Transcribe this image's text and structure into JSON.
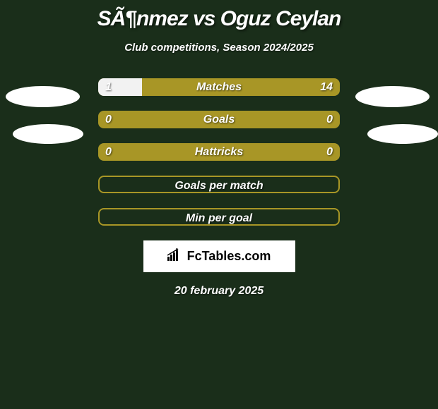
{
  "title": "SÃ¶nmez vs Oguz Ceylan",
  "subtitle": "Club competitions, Season 2024/2025",
  "background_color": "#1a2e1a",
  "bar_color": "#a89626",
  "fill_color": "#f2f2f2",
  "text_color": "#ffffff",
  "avatar_color": "#ffffff",
  "stats": [
    {
      "label": "Matches",
      "left_value": "1",
      "right_value": "14",
      "left_fill_pct": 18,
      "right_fill_pct": 0,
      "empty": false,
      "show_values": true
    },
    {
      "label": "Goals",
      "left_value": "0",
      "right_value": "0",
      "left_fill_pct": 0,
      "right_fill_pct": 0,
      "empty": false,
      "show_values": true
    },
    {
      "label": "Hattricks",
      "left_value": "0",
      "right_value": "0",
      "left_fill_pct": 0,
      "right_fill_pct": 0,
      "empty": false,
      "show_values": true
    },
    {
      "label": "Goals per match",
      "left_value": "",
      "right_value": "",
      "left_fill_pct": 0,
      "right_fill_pct": 0,
      "empty": true,
      "show_values": false
    },
    {
      "label": "Min per goal",
      "left_value": "",
      "right_value": "",
      "left_fill_pct": 0,
      "right_fill_pct": 0,
      "empty": true,
      "show_values": false
    }
  ],
  "logo_text": "FcTables.com",
  "date": "20 february 2025"
}
